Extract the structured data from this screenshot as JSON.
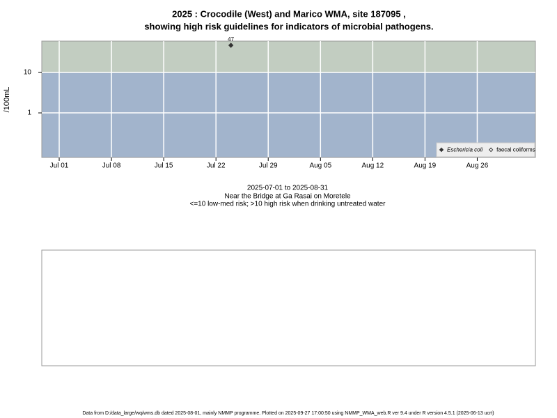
{
  "chart_data": {
    "type": "scatter",
    "title": "2025 : Crocodile (West) and Marico WMA, site 187095 ,",
    "subtitle": "showing high risk guidelines for indicators of microbial pathogens.",
    "ylabel": "/100mL",
    "xlabel": "2025-07-01 to 2025-08-31",
    "notes": [
      "Near the Bridge at Ga Rasai on Moretele",
      "<=10 low-med risk; >10 high risk when drinking untreated water"
    ],
    "footer": "Data from D:/data_large/wq/wms.db dated 2025-08-01, mainly NMMP programme. Plotted on 2025-09-27 17:00:50 using NMMP_WMA_web.R ver 9.4 under R version 4.5.1 (2025-06-13 ucrt)",
    "log_y": true,
    "ylim": [
      0.079,
      59.7
    ],
    "yticks": [
      1,
      10
    ],
    "xlim": [
      "2025-06-28T16:00:00Z",
      "2025-09-02T19:00:00Z"
    ],
    "xticks": [
      {
        "value": "2025-07-01",
        "label": "Jul 01"
      },
      {
        "value": "2025-07-08",
        "label": "Jul 08"
      },
      {
        "value": "2025-07-15",
        "label": "Jul 15"
      },
      {
        "value": "2025-07-22",
        "label": "Jul 22"
      },
      {
        "value": "2025-07-29",
        "label": "Jul 29"
      },
      {
        "value": "2025-08-05",
        "label": "Aug 05"
      },
      {
        "value": "2025-08-12",
        "label": "Aug 12"
      },
      {
        "value": "2025-08-19",
        "label": "Aug 19"
      },
      {
        "value": "2025-08-26",
        "label": "Aug 26"
      }
    ],
    "guideline": 10,
    "band_colors": [
      "#a2b4cc",
      "#c2cdc1"
    ],
    "grid": true,
    "legend": "bottom-right",
    "series": [
      {
        "name": "Eschericia coli",
        "color": "#333333",
        "filled": true,
        "x": [
          "2025-07-24"
        ],
        "values": [
          47
        ],
        "value_labels": [
          "47"
        ]
      },
      {
        "name": "faecal coliforms",
        "color": "#333333",
        "filled": false,
        "x": [],
        "values": []
      }
    ]
  }
}
